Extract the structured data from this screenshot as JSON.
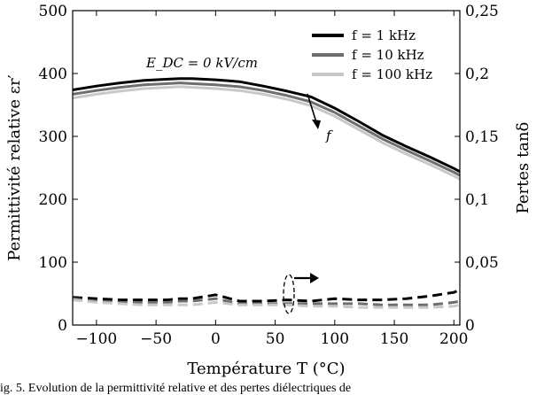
{
  "chart_data": {
    "type": "line",
    "xlabel": "Température T (°C)",
    "ylabel_left": "Permittivité relative εr′",
    "ylabel_right": "Pertes tanδ",
    "xlim": [
      -120,
      205
    ],
    "ylim_left": [
      0,
      500
    ],
    "ylim_right": [
      0,
      0.25
    ],
    "grid": false,
    "legend_position": "top-right",
    "x_ticks": [
      "−100",
      "−50",
      "0",
      "50",
      "100",
      "150",
      "200"
    ],
    "x_tick_values": [
      -100,
      -50,
      0,
      50,
      100,
      150,
      200
    ],
    "y_left_ticks": [
      "0",
      "100",
      "200",
      "300",
      "400",
      "500"
    ],
    "y_left_tick_values": [
      0,
      100,
      200,
      300,
      400,
      500
    ],
    "y_right_ticks": [
      "0",
      "0,05",
      "0,1",
      "0,15",
      "0,2",
      "0,25"
    ],
    "y_right_tick_values": [
      0,
      0.05,
      0.1,
      0.15,
      0.2,
      0.25
    ],
    "x": [
      -120,
      -100,
      -80,
      -60,
      -40,
      -30,
      -20,
      0,
      20,
      40,
      60,
      80,
      100,
      120,
      140,
      160,
      180,
      200,
      205
    ],
    "series": [
      {
        "name": "f = 1 kHz",
        "axis": "left",
        "color": "#000000",
        "dash": false,
        "values": [
          374,
          380,
          385,
          389,
          391,
          392,
          392,
          390,
          387,
          380,
          372,
          363,
          345,
          324,
          302,
          284,
          267,
          249,
          244
        ]
      },
      {
        "name": "f = 10 kHz",
        "axis": "left",
        "color": "#6e6e6e",
        "dash": false,
        "values": [
          367,
          373,
          378,
          382,
          384,
          385,
          384,
          382,
          379,
          373,
          365,
          355,
          338,
          317,
          296,
          278,
          261,
          243,
          238
        ]
      },
      {
        "name": "f = 100 kHz",
        "axis": "left",
        "color": "#c8c8c8",
        "dash": false,
        "values": [
          361,
          367,
          372,
          376,
          378,
          379,
          378,
          376,
          373,
          367,
          359,
          349,
          332,
          311,
          290,
          272,
          255,
          237,
          232
        ]
      },
      {
        "name": "",
        "axis": "right",
        "color": "#000000",
        "dash": true,
        "values": [
          0.022,
          0.021,
          0.02,
          0.02,
          0.02,
          0.021,
          0.021,
          0.024,
          0.019,
          0.019,
          0.02,
          0.019,
          0.021,
          0.02,
          0.02,
          0.021,
          0.023,
          0.026,
          0.028
        ]
      },
      {
        "name": "",
        "axis": "right",
        "color": "#6e6e6e",
        "dash": true,
        "values": [
          0.021,
          0.019,
          0.018,
          0.018,
          0.018,
          0.019,
          0.019,
          0.021,
          0.017,
          0.017,
          0.017,
          0.017,
          0.017,
          0.017,
          0.016,
          0.016,
          0.016,
          0.018,
          0.019
        ]
      },
      {
        "name": "",
        "axis": "right",
        "color": "#c8c8c8",
        "dash": true,
        "values": [
          0.02,
          0.018,
          0.017,
          0.016,
          0.016,
          0.016,
          0.016,
          0.018,
          0.016,
          0.016,
          0.016,
          0.015,
          0.015,
          0.014,
          0.014,
          0.014,
          0.014,
          0.015,
          0.016
        ]
      }
    ],
    "annotations": [
      {
        "text": "E_DC = 0 kV/cm"
      },
      {
        "text": "f"
      }
    ]
  },
  "caption": "ig. 5. Evolution de la permittivité relative et des pertes diélectriques de"
}
